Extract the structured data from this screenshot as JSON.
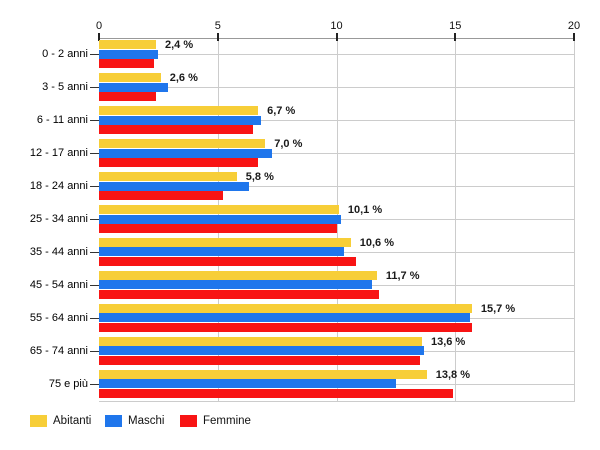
{
  "chart_data": {
    "type": "bar",
    "orientation": "horizontal",
    "title": "",
    "categories": [
      "0 - 2 anni",
      "3 - 5 anni",
      "6 - 11 anni",
      "12 - 17 anni",
      "18 - 24 anni",
      "25 - 34 anni",
      "35 - 44 anni",
      "45 - 54 anni",
      "55 - 64 anni",
      "65 - 74 anni",
      "75 e più"
    ],
    "series": [
      {
        "name": "Abitanti",
        "color": "#F7CE38",
        "values": [
          2.4,
          2.6,
          6.7,
          7.0,
          5.8,
          10.1,
          10.6,
          11.7,
          15.7,
          13.6,
          13.8
        ]
      },
      {
        "name": "Maschi",
        "color": "#1F76EC",
        "values": [
          2.5,
          2.9,
          6.8,
          7.3,
          6.3,
          10.2,
          10.3,
          11.5,
          15.6,
          13.7,
          12.5
        ]
      },
      {
        "name": "Femmine",
        "color": "#F81414",
        "values": [
          2.3,
          2.4,
          6.5,
          6.7,
          5.2,
          10.0,
          10.8,
          11.8,
          15.7,
          13.5,
          14.9
        ]
      }
    ],
    "value_labels": [
      "2,4 %",
      "2,6 %",
      "6,7 %",
      "7,0 %",
      "5,8 %",
      "10,1 %",
      "10,6 %",
      "11,7 %",
      "15,7 %",
      "13,6 %",
      "13,8 %"
    ],
    "x_ticks": [
      "0",
      "5",
      "10",
      "15",
      "20"
    ],
    "xlim": [
      0,
      20
    ],
    "grid": true,
    "legend_position": "bottom-left",
    "colors": {
      "grid": "#CCCCCC",
      "axis": "#999999",
      "tick": "#222222",
      "text": "#000000",
      "value_label": "#1A1A1A",
      "background": "#FFFFFF"
    }
  }
}
